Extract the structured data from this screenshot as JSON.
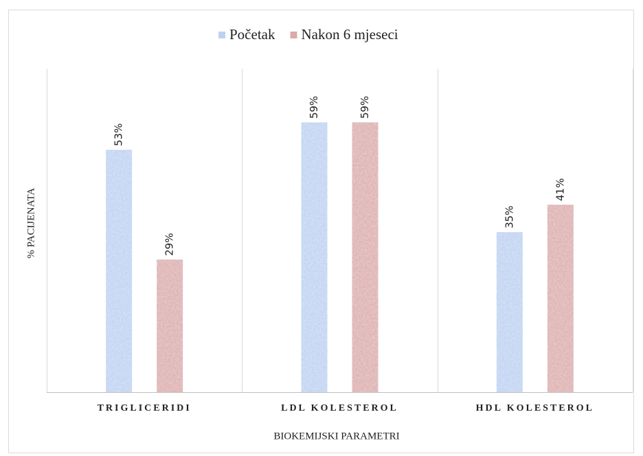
{
  "chart_data": {
    "type": "bar",
    "categories": [
      "TRIGLICERIDI",
      "LDL KOLESTEROL",
      "HDL KOLESTEROL"
    ],
    "series": [
      {
        "name": "Početak",
        "color": "#bdd1f2",
        "values": [
          53,
          59,
          35
        ],
        "value_labels": [
          "53%",
          "59%",
          "35%"
        ]
      },
      {
        "name": "Nakon 6 mjeseci",
        "color": "#dcaaaa",
        "values": [
          29,
          59,
          41
        ],
        "value_labels": [
          "29%",
          "59%",
          "41%"
        ]
      }
    ],
    "xlabel": "BIOKEMIJSKI PARAMETRI",
    "ylabel": "% PACIJENATA",
    "ylim": [
      0,
      70
    ],
    "legend": "top"
  }
}
